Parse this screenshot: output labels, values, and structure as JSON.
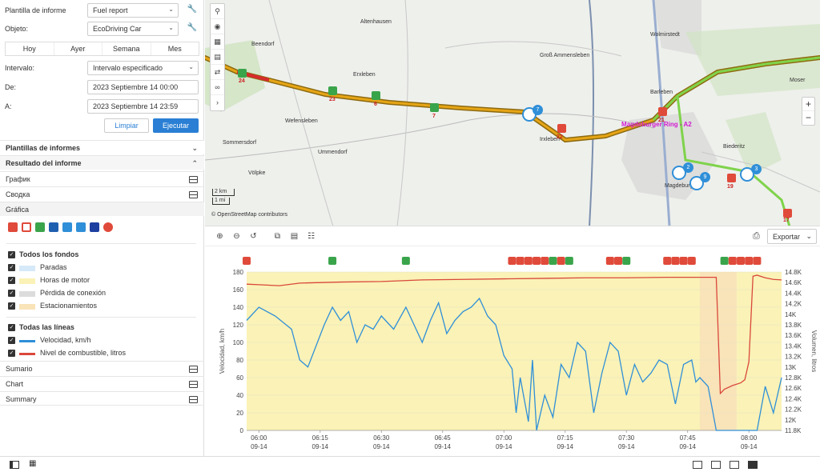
{
  "form": {
    "template_label": "Plantilla de informe",
    "template_value": "Fuel report",
    "object_label": "Objeto:",
    "object_value": "EcoDriving Car",
    "quick": [
      "Hoy",
      "Ayer",
      "Semana",
      "Mes"
    ],
    "interval_label": "Intervalo:",
    "interval_value": "Intervalo especificado",
    "from_label": "De:",
    "from_value": "2023 Septiembre 14 00:00",
    "to_label": "A:",
    "to_value": "2023 Septiembre 14 23:59",
    "clear_label": "Limpiar",
    "run_label": "Ejecutar"
  },
  "sections": {
    "templates": "Plantillas de informes",
    "result": "Resultado del informe",
    "items": [
      "График",
      "Сводка"
    ],
    "grafica": "Gráfica",
    "bottom": [
      "Sumario",
      "Chart",
      "Summary"
    ]
  },
  "legend": {
    "backgrounds_title": "Todos los fondos",
    "backgrounds": [
      {
        "label": "Paradas",
        "color": "#d6e9f8"
      },
      {
        "label": "Horas de motor",
        "color": "#faf2b6"
      },
      {
        "label": "Pérdida de conexión",
        "color": "#dcdcdc"
      },
      {
        "label": "Estacionamientos",
        "color": "#f9e3b8"
      }
    ],
    "lines_title": "Todas las líneas",
    "lines": [
      {
        "label": "Velocidad, km/h",
        "color": "#2f8fd8"
      },
      {
        "label": "Nivel de combustible, litros",
        "color": "#d9483b"
      }
    ]
  },
  "map": {
    "towns": [
      "Beendorf",
      "Altenhausen",
      "Erxleben",
      "Groß Ammensleben",
      "Wolmirstedt",
      "Barleben",
      "Moser",
      "Wefensleben",
      "Sommersdorf",
      "Ummendorf",
      "Irxleben",
      "Magdeburg",
      "Biederitz",
      "Völpke"
    ],
    "route_label": "Magdeburger Ring - A2",
    "markers": [
      "24",
      "23",
      "6",
      "7",
      "7",
      "22",
      "21",
      "2",
      "9",
      "3",
      "19",
      "17"
    ],
    "scale_km": "2 km",
    "scale_mi": "1 mi",
    "attribution": "© OpenStreetMap contributors"
  },
  "toolbar": {
    "export_label": "Exportar"
  },
  "chart_data": {
    "type": "line",
    "xlabel": "",
    "ylabel_left": "Velocidad, km/h",
    "ylabel_right": "Volumen, litros",
    "left_ticks": [
      "0",
      "20",
      "40",
      "60",
      "80",
      "100",
      "120",
      "140",
      "160",
      "180"
    ],
    "right_ticks": [
      "11.8K",
      "12K",
      "12.2K",
      "12.4K",
      "12.6K",
      "12.8K",
      "13K",
      "13.2K",
      "13.4K",
      "13.6K",
      "13.8K",
      "14K",
      "14.2K",
      "14.4K",
      "14.6K",
      "14.8K"
    ],
    "x_ticks": [
      {
        "t": "06:00",
        "d": "09-14"
      },
      {
        "t": "06:15",
        "d": "09-14"
      },
      {
        "t": "06:30",
        "d": "09-14"
      },
      {
        "t": "06:45",
        "d": "09-14"
      },
      {
        "t": "07:00",
        "d": "09-14"
      },
      {
        "t": "07:15",
        "d": "09-14"
      },
      {
        "t": "07:30",
        "d": "09-14"
      },
      {
        "t": "07:45",
        "d": "09-14"
      },
      {
        "t": "08:00",
        "d": "09-14"
      }
    ],
    "ylim_left": [
      0,
      180
    ],
    "ylim_right": [
      11800,
      14800
    ],
    "x_range_min": [
      -3,
      128
    ],
    "series": [
      {
        "name": "Velocidad, km/h",
        "color": "#2f8fd8",
        "x": [
          -3,
          0,
          4,
          8,
          10,
          12,
          16,
          18,
          20,
          22,
          24,
          26,
          28,
          30,
          33,
          36,
          38,
          40,
          42,
          44,
          46,
          48,
          50,
          52,
          54,
          55,
          56,
          58,
          60,
          62,
          63,
          64,
          66,
          67,
          68,
          70,
          72,
          74,
          76,
          78,
          80,
          82,
          84,
          86,
          88,
          90,
          92,
          94,
          96,
          98,
          100,
          102,
          104,
          106,
          107,
          108,
          110,
          112,
          114,
          115,
          116,
          117,
          118,
          120,
          122,
          124,
          126,
          128
        ],
        "y": [
          125,
          140,
          130,
          115,
          80,
          72,
          120,
          140,
          125,
          135,
          100,
          120,
          115,
          130,
          115,
          140,
          120,
          100,
          125,
          145,
          110,
          125,
          135,
          140,
          150,
          140,
          130,
          120,
          85,
          70,
          20,
          60,
          10,
          80,
          0,
          40,
          15,
          75,
          60,
          100,
          90,
          20,
          65,
          100,
          90,
          40,
          75,
          55,
          65,
          80,
          75,
          30,
          75,
          80,
          55,
          60,
          50,
          0,
          0,
          0,
          0,
          0,
          0,
          0,
          0,
          50,
          20,
          60
        ]
      },
      {
        "name": "Nivel de combustible, litros",
        "color": "#d9483b",
        "x": [
          -3,
          0,
          5,
          10,
          20,
          30,
          40,
          50,
          60,
          70,
          80,
          90,
          100,
          110,
          112,
          113,
          114,
          116,
          118,
          119,
          120,
          121,
          122,
          124,
          126,
          128
        ],
        "y": [
          14570,
          14560,
          14540,
          14590,
          14610,
          14620,
          14650,
          14660,
          14670,
          14680,
          14690,
          14690,
          14700,
          14700,
          14700,
          12500,
          12580,
          12650,
          12700,
          12760,
          13100,
          14720,
          14740,
          14690,
          14660,
          14650
        ]
      }
    ],
    "backgrounds": [
      {
        "type": "Horas de motor",
        "x0": -3,
        "x1": 108
      },
      {
        "type": "Estacionamientos",
        "x0": 108,
        "x1": 117
      },
      {
        "type": "Horas de motor",
        "x0": 117,
        "x1": 128
      }
    ]
  }
}
